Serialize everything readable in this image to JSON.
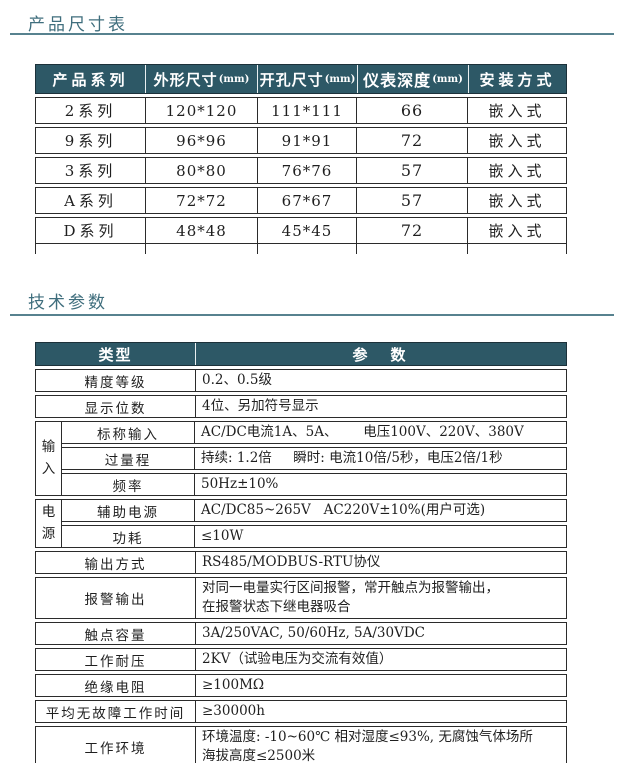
{
  "sections": {
    "dimension_title": "产品尺寸表",
    "tech_title": "技术参数"
  },
  "colors": {
    "header_bg": "#2d5866",
    "header_text": "#ffffff",
    "title_text": "#3f6e7d",
    "rule": "#57828f",
    "border": "#2b2b2b"
  },
  "dimension_table": {
    "headers": [
      {
        "label": "产品系列",
        "unit": ""
      },
      {
        "label": "外形尺寸",
        "unit": "(mm)"
      },
      {
        "label": "开孔尺寸",
        "unit": "(mm)"
      },
      {
        "label": "仪表深度",
        "unit": "(mm)"
      },
      {
        "label": "安装方式",
        "unit": ""
      }
    ],
    "rows": [
      [
        "2系列",
        "120*120",
        "111*111",
        "66",
        "嵌入式"
      ],
      [
        "9系列",
        "96*96",
        "91*91",
        "72",
        "嵌入式"
      ],
      [
        "3系列",
        "80*80",
        "76*76",
        "57",
        "嵌入式"
      ],
      [
        "A系列",
        "72*72",
        "67*67",
        "57",
        "嵌入式"
      ],
      [
        "D系列",
        "48*48",
        "45*45",
        "72",
        "嵌入式"
      ]
    ]
  },
  "tech_table": {
    "headers": [
      "类型",
      "参　数"
    ],
    "rows": [
      {
        "label": "精度等级",
        "value": "0.2、0.5级"
      },
      {
        "label": "显示位数",
        "value": "4位、另加符号显示"
      },
      {
        "group": "输入",
        "group_span": 3,
        "label": "标称输入",
        "value": "AC/DC电流1A、5A、      电压100V、220V、380V"
      },
      {
        "label": "过量程",
        "value": "持续: 1.2倍     瞬时: 电流10倍/5秒，电压2倍/1秒"
      },
      {
        "label": "频率",
        "value": "50Hz±10%"
      },
      {
        "group": "电源",
        "group_span": 2,
        "label": "辅助电源",
        "value": "AC/DC85~265V   AC220V±10%(用户可选)"
      },
      {
        "label": "功耗",
        "value": "≤10W"
      },
      {
        "label": "输出方式",
        "value": "RS485/MODBUS-RTU协仪"
      },
      {
        "label": "报警输出",
        "value": "对同一电量实行区间报警，常开触点为报警输出，\n在报警状态下继电器吸合",
        "tall": true
      },
      {
        "label": "触点容量",
        "value": "3A/250VAC, 50/60Hz, 5A/30VDC"
      },
      {
        "label": "工作耐压",
        "value": "2KV（试验电压为交流有效值）"
      },
      {
        "label": "绝缘电阻",
        "value": "≥100MΩ"
      },
      {
        "label": "平均无故障工作时间",
        "value": "≥30000h"
      },
      {
        "label": "工作环境",
        "value": "环境温度: -10~60℃ 相对湿度≤93%, 无腐蚀气体场所\n海拔高度≤2500米",
        "tall": true
      }
    ]
  }
}
